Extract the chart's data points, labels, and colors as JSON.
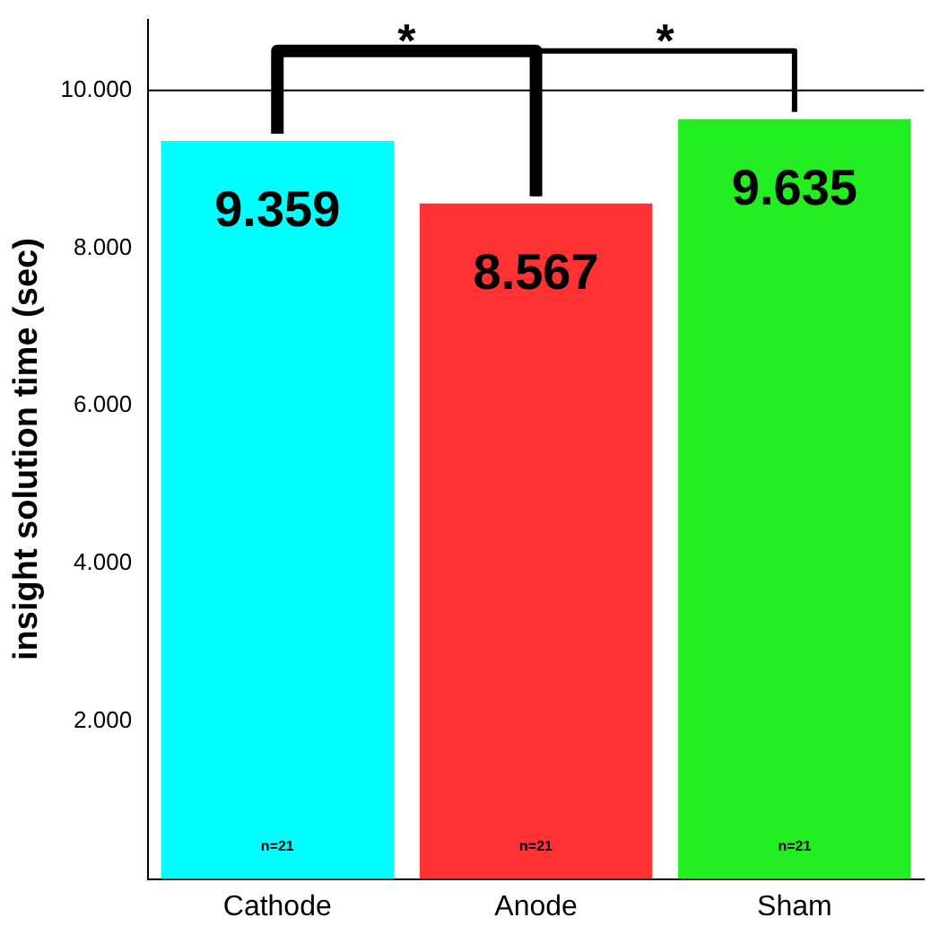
{
  "chart_data": {
    "type": "bar",
    "ylabel": "insight solution time (sec)",
    "categories": [
      "Cathode",
      "Anode",
      "Sham"
    ],
    "values": [
      9.359,
      8.567,
      9.635
    ],
    "colors": [
      "#00ffff",
      "#ff3333",
      "#22ee22"
    ],
    "ylim": [
      0,
      10
    ],
    "yticks": [
      {
        "value": 2,
        "label": "2.000"
      },
      {
        "value": 4,
        "label": "4.000"
      },
      {
        "value": 6,
        "label": "6.000"
      },
      {
        "value": 8,
        "label": "8.000"
      },
      {
        "value": 10,
        "label": "10.000"
      }
    ],
    "grid": false,
    "legend": false,
    "data_labels": true,
    "annotations": [
      "*",
      "*",
      "n=21",
      "n=21",
      "n=21"
    ]
  }
}
